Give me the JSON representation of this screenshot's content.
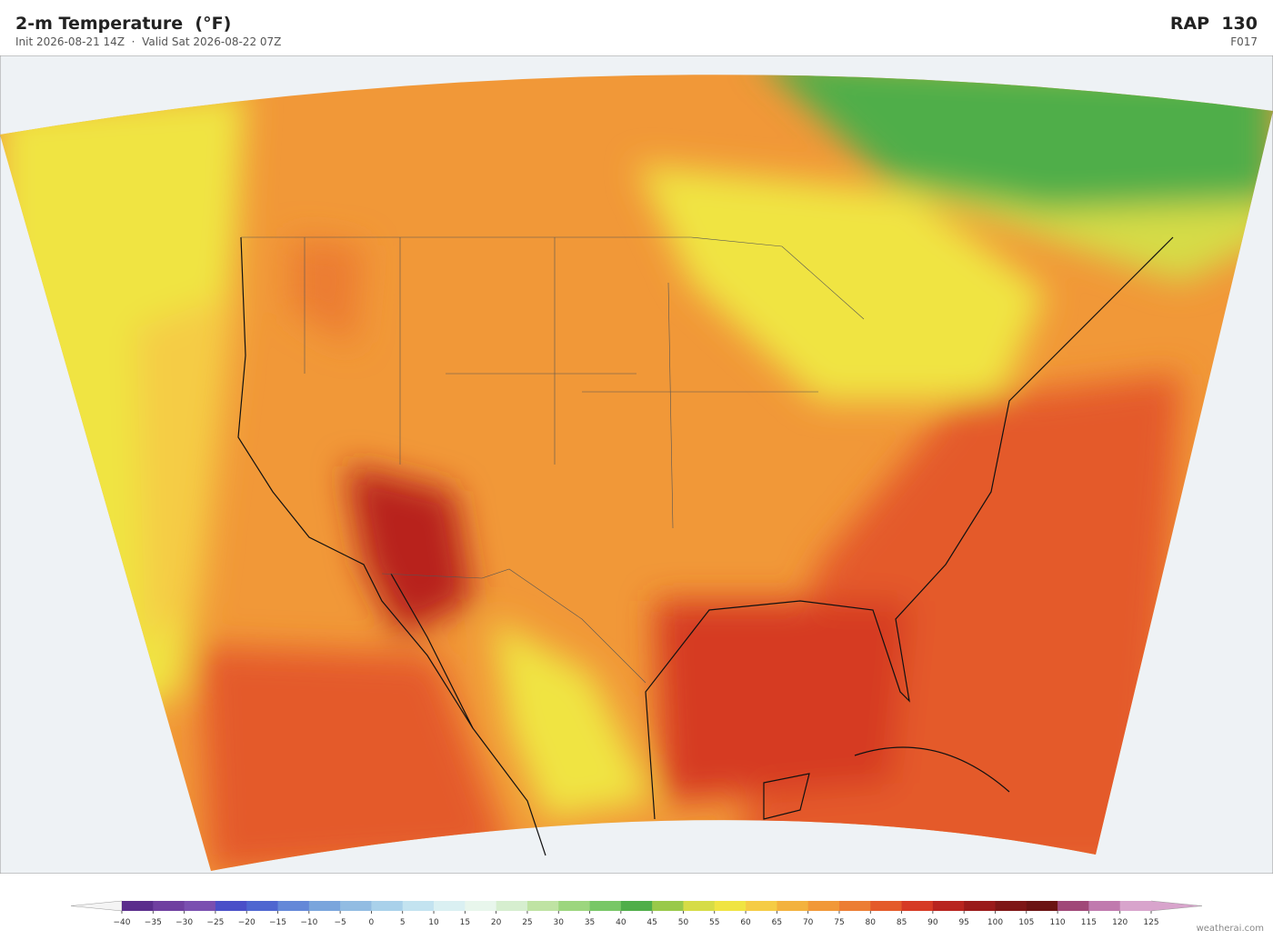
{
  "header": {
    "title": "2-m Temperature  (°F)",
    "subtitle": "Init 2026-08-21 14Z  ·  Valid Sat 2026-08-22 07Z",
    "model": "RAP  130",
    "forecast_hour": "F017"
  },
  "colorbar": {
    "ticks": [
      "−40",
      "−35",
      "−30",
      "−25",
      "−20",
      "−15",
      "−10",
      "−5",
      "0",
      "5",
      "10",
      "15",
      "20",
      "25",
      "30",
      "35",
      "40",
      "45",
      "50",
      "55",
      "60",
      "65",
      "70",
      "75",
      "80",
      "85",
      "90",
      "95",
      "100",
      "105",
      "110",
      "115",
      "120",
      "125"
    ],
    "colors": [
      "#5a2d8c",
      "#6f3fa0",
      "#7a4fb0",
      "#4a4fc8",
      "#4e66d0",
      "#6488d8",
      "#7aa5dc",
      "#92bce2",
      "#a9d1ea",
      "#c3e3f0",
      "#daf0f2",
      "#e8f6ec",
      "#d6eecf",
      "#bfe3a3",
      "#9cd67e",
      "#78c766",
      "#4fae49",
      "#99c94a",
      "#d6dc46",
      "#f0e442",
      "#f5cc45",
      "#f3b23e",
      "#f19838",
      "#ec7d33",
      "#e45a2a",
      "#d63a24",
      "#b8241f",
      "#9a1a1a",
      "#7e1616",
      "#6b1313",
      "#a04878",
      "#c07aae",
      "#d8a4cc"
    ],
    "under_color": "#f4f4f4",
    "over_color": "#d8a4cc"
  },
  "footer": {
    "credit": "weatherai.com"
  }
}
